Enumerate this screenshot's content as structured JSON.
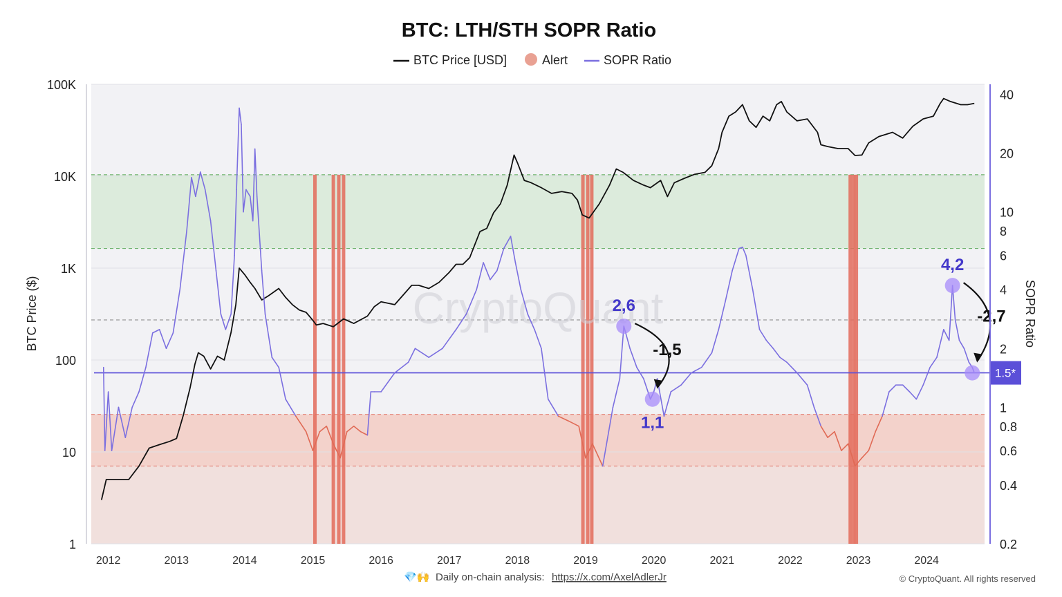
{
  "chart_data": {
    "type": "line",
    "title": "BTC: LTH/STH SOPR Ratio",
    "legend": [
      {
        "label": "BTC Price [USD]",
        "kind": "line",
        "color": "#111111"
      },
      {
        "label": "Alert",
        "kind": "dot",
        "color": "#e9a193"
      },
      {
        "label": "SOPR Ratio",
        "kind": "line",
        "color": "#7b6fe0"
      }
    ],
    "ylabel_left": "BTC Price ($)",
    "ylabel_right": "SOPR Ratio",
    "y_left": {
      "scale": "log",
      "range": [
        1,
        100000
      ],
      "ticks": [
        {
          "value": 1,
          "label": "1"
        },
        {
          "value": 10,
          "label": "10"
        },
        {
          "value": 100,
          "label": "100"
        },
        {
          "value": 1000,
          "label": "1K"
        },
        {
          "value": 10000,
          "label": "10K"
        },
        {
          "value": 100000,
          "label": "100K"
        }
      ]
    },
    "y_right": {
      "scale": "log",
      "range": [
        0.2,
        45
      ],
      "ticks": [
        {
          "value": 0.2,
          "label": "0.2"
        },
        {
          "value": 0.4,
          "label": "0.4"
        },
        {
          "value": 0.6,
          "label": "0.6"
        },
        {
          "value": 0.8,
          "label": "0.8"
        },
        {
          "value": 1,
          "label": "1"
        },
        {
          "value": 2,
          "label": "2"
        },
        {
          "value": 4,
          "label": "4"
        },
        {
          "value": 6,
          "label": "6"
        },
        {
          "value": 8,
          "label": "8"
        },
        {
          "value": 10,
          "label": "10"
        },
        {
          "value": 20,
          "label": "20"
        },
        {
          "value": 40,
          "label": "40"
        }
      ]
    },
    "x_axis": {
      "range": [
        2011.75,
        2024.85
      ],
      "ticks": [
        "2012",
        "2013",
        "2014",
        "2015",
        "2016",
        "2017",
        "2018",
        "2019",
        "2020",
        "2021",
        "2022",
        "2023",
        "2024"
      ]
    },
    "zones": [
      {
        "name": "green",
        "from": 6.5,
        "to": 15.5,
        "color": "#dcebdc"
      },
      {
        "name": "red",
        "from": 0.5,
        "to": 0.92,
        "color": "#f3d2cb"
      },
      {
        "name": "red-low",
        "from": 0.2,
        "to": 0.5,
        "color": "#f1e0dd"
      }
    ],
    "reference_lines": [
      {
        "value": 15.5,
        "color": "#6db36d"
      },
      {
        "value": 6.5,
        "color": "#6db36d"
      },
      {
        "value": 2.8,
        "color": "#999999"
      },
      {
        "value": 0.92,
        "color": "#e48a80"
      },
      {
        "value": 0.5,
        "color": "#e48a80"
      }
    ],
    "threshold": {
      "value": 1.5,
      "label": "1.5*",
      "color": "#5b4fd8"
    },
    "alert_bands": [
      2015.03,
      2015.3,
      2015.38,
      2015.45,
      2018.96,
      2019.03,
      2019.09,
      2022.88,
      2022.93,
      2022.97
    ],
    "btc_price": {
      "name": "BTC Price [USD]",
      "x": [
        2011.9,
        2011.97,
        2012.05,
        2012.15,
        2012.3,
        2012.45,
        2012.6,
        2012.75,
        2012.9,
        2013.0,
        2013.1,
        2013.2,
        2013.27,
        2013.32,
        2013.4,
        2013.5,
        2013.6,
        2013.7,
        2013.8,
        2013.87,
        2013.92,
        2014.0,
        2014.08,
        2014.15,
        2014.25,
        2014.35,
        2014.5,
        2014.6,
        2014.7,
        2014.8,
        2014.9,
        2015.0,
        2015.05,
        2015.15,
        2015.3,
        2015.45,
        2015.6,
        2015.8,
        2015.9,
        2016.0,
        2016.2,
        2016.45,
        2016.55,
        2016.7,
        2016.85,
        2017.0,
        2017.1,
        2017.2,
        2017.3,
        2017.45,
        2017.55,
        2017.65,
        2017.75,
        2017.85,
        2017.95,
        2018.0,
        2018.1,
        2018.2,
        2018.35,
        2018.5,
        2018.65,
        2018.8,
        2018.88,
        2018.95,
        2019.05,
        2019.2,
        2019.35,
        2019.45,
        2019.55,
        2019.7,
        2019.85,
        2019.95,
        2020.1,
        2020.2,
        2020.3,
        2020.45,
        2020.6,
        2020.75,
        2020.85,
        2020.95,
        2021.0,
        2021.1,
        2021.2,
        2021.3,
        2021.4,
        2021.5,
        2021.6,
        2021.7,
        2021.8,
        2021.87,
        2021.95,
        2022.1,
        2022.25,
        2022.4,
        2022.45,
        2022.55,
        2022.7,
        2022.85,
        2022.95,
        2023.05,
        2023.15,
        2023.3,
        2023.5,
        2023.65,
        2023.8,
        2023.95,
        2024.0,
        2024.1,
        2024.2,
        2024.25,
        2024.35,
        2024.5,
        2024.6,
        2024.7
      ],
      "y": [
        3,
        5,
        5,
        5,
        5,
        7,
        11,
        12,
        13,
        14,
        25,
        50,
        90,
        120,
        110,
        80,
        110,
        100,
        200,
        400,
        1000,
        850,
        700,
        600,
        450,
        500,
        600,
        480,
        400,
        350,
        330,
        270,
        240,
        250,
        230,
        280,
        250,
        300,
        380,
        430,
        400,
        650,
        650,
        600,
        700,
        900,
        1100,
        1100,
        1300,
        2500,
        2700,
        4000,
        5000,
        8000,
        17000,
        14000,
        9000,
        8500,
        7500,
        6500,
        6800,
        6500,
        5500,
        3800,
        3500,
        5000,
        8000,
        12000,
        11000,
        9000,
        8000,
        7500,
        9000,
        6000,
        8500,
        9500,
        10500,
        11000,
        13000,
        20000,
        30000,
        45000,
        50000,
        60000,
        40000,
        34000,
        45000,
        40000,
        60000,
        65000,
        50000,
        40000,
        42000,
        30000,
        22000,
        21000,
        20000,
        20000,
        16800,
        17000,
        23000,
        27000,
        30000,
        26000,
        35000,
        42000,
        43000,
        45000,
        62000,
        70000,
        65000,
        60000,
        60000,
        62000
      ]
    },
    "sopr_ratio": {
      "name": "SOPR Ratio",
      "x": [
        2011.93,
        2011.95,
        2012.0,
        2012.05,
        2012.15,
        2012.25,
        2012.35,
        2012.45,
        2012.55,
        2012.65,
        2012.75,
        2012.85,
        2012.95,
        2013.05,
        2013.15,
        2013.22,
        2013.28,
        2013.35,
        2013.42,
        2013.5,
        2013.58,
        2013.65,
        2013.72,
        2013.8,
        2013.85,
        2013.88,
        2013.92,
        2013.95,
        2013.98,
        2014.02,
        2014.08,
        2014.12,
        2014.15,
        2014.18,
        2014.25,
        2014.3,
        2014.4,
        2014.5,
        2014.6,
        2014.75,
        2014.9,
        2015.0,
        2015.1,
        2015.2,
        2015.3,
        2015.4,
        2015.5,
        2015.6,
        2015.7,
        2015.8,
        2015.85,
        2015.9,
        2016.0,
        2016.2,
        2016.4,
        2016.5,
        2016.7,
        2016.9,
        2017.1,
        2017.25,
        2017.4,
        2017.5,
        2017.6,
        2017.7,
        2017.8,
        2017.9,
        2017.97,
        2018.05,
        2018.15,
        2018.25,
        2018.35,
        2018.45,
        2018.6,
        2018.75,
        2018.9,
        2019.0,
        2019.1,
        2019.25,
        2019.4,
        2019.5,
        2019.56,
        2019.65,
        2019.75,
        2019.85,
        2019.95,
        2020.0,
        2020.05,
        2020.15,
        2020.25,
        2020.4,
        2020.55,
        2020.7,
        2020.85,
        2020.95,
        2021.05,
        2021.15,
        2021.25,
        2021.3,
        2021.35,
        2021.45,
        2021.55,
        2021.65,
        2021.75,
        2021.85,
        2021.95,
        2022.1,
        2022.25,
        2022.35,
        2022.45,
        2022.55,
        2022.65,
        2022.75,
        2022.85,
        2022.95,
        2023.05,
        2023.15,
        2023.25,
        2023.35,
        2023.45,
        2023.55,
        2023.65,
        2023.75,
        2023.85,
        2023.95,
        2024.05,
        2024.15,
        2024.25,
        2024.33,
        2024.38,
        2024.42,
        2024.48,
        2024.55,
        2024.62,
        2024.67,
        2024.7
      ],
      "y": [
        1.6,
        0.6,
        1.2,
        0.6,
        1.0,
        0.7,
        1.0,
        1.2,
        1.6,
        2.4,
        2.5,
        2.0,
        2.4,
        4.0,
        8.0,
        15.0,
        12.0,
        16.0,
        13.0,
        9.0,
        5.0,
        3.0,
        2.5,
        3.0,
        6.0,
        13.0,
        34.0,
        28.0,
        10.0,
        13.0,
        12.0,
        9.0,
        21.0,
        12.0,
        5.0,
        3.0,
        1.8,
        1.6,
        1.1,
        0.9,
        0.75,
        0.6,
        0.75,
        0.8,
        0.65,
        0.55,
        0.75,
        0.8,
        0.75,
        0.72,
        1.2,
        1.2,
        1.2,
        1.5,
        1.7,
        2.0,
        1.8,
        2.0,
        2.5,
        3.0,
        4.0,
        5.5,
        4.5,
        5.0,
        6.5,
        7.5,
        5.5,
        4.0,
        3.0,
        2.5,
        2.0,
        1.1,
        0.9,
        0.85,
        0.8,
        0.55,
        0.65,
        0.5,
        1.0,
        1.4,
        2.6,
        2.0,
        1.6,
        1.4,
        1.1,
        1.2,
        1.4,
        0.9,
        1.2,
        1.3,
        1.5,
        1.6,
        1.9,
        2.5,
        3.5,
        5.0,
        6.5,
        6.6,
        6.0,
        4.0,
        2.5,
        2.2,
        2.0,
        1.8,
        1.7,
        1.5,
        1.3,
        1.0,
        0.8,
        0.7,
        0.75,
        0.6,
        0.65,
        0.5,
        0.55,
        0.6,
        0.75,
        0.9,
        1.2,
        1.3,
        1.3,
        1.2,
        1.1,
        1.3,
        1.6,
        1.8,
        2.5,
        2.2,
        4.2,
        2.8,
        2.2,
        2.0,
        1.7,
        1.6,
        1.5
      ]
    },
    "annotations": [
      {
        "x": 2019.56,
        "y": 2.6,
        "label": "2,6",
        "label_pos": "above"
      },
      {
        "x": 2019.98,
        "y": 1.1,
        "label": "1,1",
        "label_pos": "below"
      },
      {
        "x": 2024.38,
        "y": 4.2,
        "label": "4,2",
        "label_pos": "above"
      },
      {
        "x": 2024.67,
        "y": 1.5,
        "label": "",
        "label_pos": "none"
      }
    ],
    "changes": [
      {
        "label": "-1,5",
        "from": 0,
        "to": 1
      },
      {
        "label": "-2,7",
        "from": 2,
        "to": 3
      }
    ]
  },
  "watermark": "CryptoQuant",
  "footer": {
    "emoji": "💎🙌",
    "text": "Daily on-chain analysis: ",
    "link": "https://x.com/AxelAdlerJr",
    "copyright": "© CryptoQuant. All rights reserved"
  }
}
